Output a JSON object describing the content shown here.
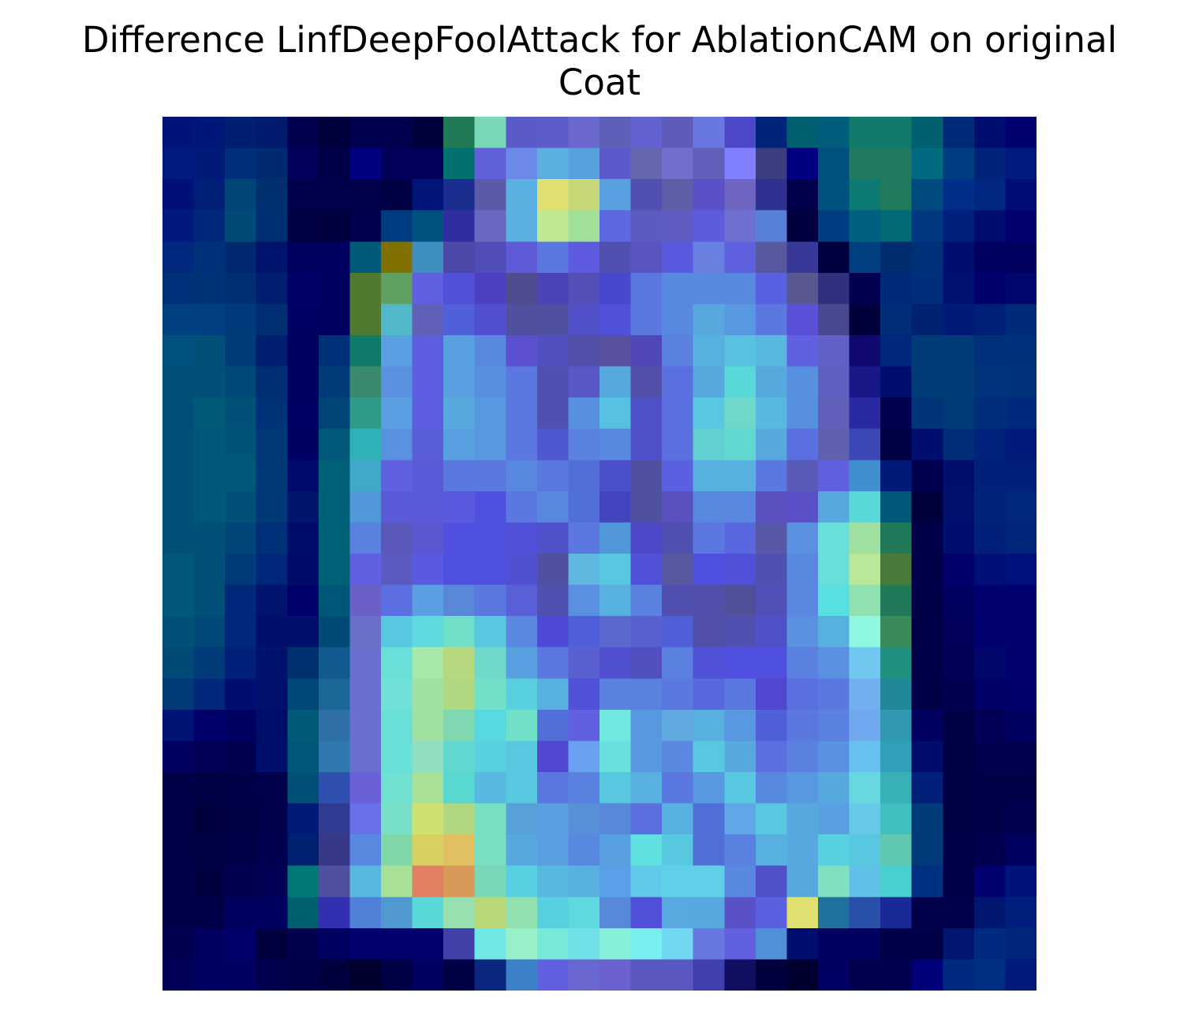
{
  "figure": {
    "title": "Difference LinfDeepFoolAttack for AblationCAM on original\nCoat"
  },
  "image": {
    "description_kind": "28x28 heatmap overlay (jet colormap) on a coat silhouette",
    "grid": 28,
    "colors": {
      "dark_navy": "#000050",
      "navy": "#001a80",
      "teal": "#006070",
      "blue_violet": "#5a5ad8",
      "sky": "#60b0e0",
      "cyan": "#60e0e0",
      "light_green": "#a0e0a0",
      "yellow": "#e0e070",
      "orange": "#e08060",
      "olive": "#807000"
    },
    "pixels": [
      [
        "#00137a",
        "#00177a",
        "#001f70",
        "#001a6e",
        "#000050",
        "#00003c",
        "#000050",
        "#000050",
        "#00003c",
        "#207a55",
        "#78d8b8",
        "#5a5ac8",
        "#5e5ccb",
        "#6a68cc",
        "#5e60b8",
        "#6262d0",
        "#5e5cb8",
        "#6878e0",
        "#4c48c8",
        "#00247a",
        "#006070",
        "#005e7c",
        "#107a6a",
        "#107a6a",
        "#006070",
        "#002a78",
        "#000e70",
        "#000070"
      ],
      [
        "#001a82",
        "#001a7a",
        "#002f78",
        "#002a70",
        "#00005a",
        "#000048",
        "#000080",
        "#00005a",
        "#00005a",
        "#007070",
        "#6060d8",
        "#6c88e8",
        "#5aaee0",
        "#56a0dc",
        "#5a5acc",
        "#6666b0",
        "#7070cc",
        "#6060b8",
        "#8080ff",
        "#3c3c80",
        "#000080",
        "#005080",
        "#207a62",
        "#207a62",
        "#006a80",
        "#003c80",
        "#00247a",
        "#001a82"
      ],
      [
        "#00107a",
        "#001f76",
        "#004478",
        "#003070",
        "#00004c",
        "#00004c",
        "#00004c",
        "#000044",
        "#00147a",
        "#1a2e90",
        "#5a5aa8",
        "#5ab0e0",
        "#e0e070",
        "#c8d878",
        "#58a0e0",
        "#5050b0",
        "#5e5ea8",
        "#5a50c8",
        "#6e66c0",
        "#303090",
        "#00004c",
        "#005280",
        "#0a7a72",
        "#207a5e",
        "#004a80",
        "#002e88",
        "#002880",
        "#000c78"
      ],
      [
        "#001880",
        "#00287a",
        "#004a78",
        "#002e72",
        "#000044",
        "#000040",
        "#000050",
        "#003c80",
        "#005080",
        "#2e2ea0",
        "#6868c0",
        "#5ab0e0",
        "#c0e890",
        "#a0e098",
        "#5e68e0",
        "#5c5cc0",
        "#5e5cc0",
        "#5c5cdc",
        "#7070d0",
        "#5880d8",
        "#000040",
        "#003c80",
        "#006080",
        "#006a76",
        "#003880",
        "#00207a",
        "#000c70",
        "#000070"
      ],
      [
        "#00287e",
        "#003078",
        "#00286e",
        "#00146e",
        "#000060",
        "#000060",
        "#005a78",
        "#807000",
        "#3e8ec0",
        "#4c48a8",
        "#504cb8",
        "#5e5ad8",
        "#5a78e0",
        "#5e5ae0",
        "#5050b0",
        "#5a54c0",
        "#5a5ae0",
        "#6880e0",
        "#5e60e0",
        "#5858a0",
        "#383898",
        "#000040",
        "#004080",
        "#002c70",
        "#003078",
        "#000e70",
        "#000060",
        "#000060"
      ],
      [
        "#003078",
        "#003278",
        "#002e74",
        "#001e70",
        "#000068",
        "#000060",
        "#507a30",
        "#60a060",
        "#5e60e0",
        "#5050d8",
        "#4c40c0",
        "#504c90",
        "#4a44b8",
        "#5450b8",
        "#4848cc",
        "#5a78e0",
        "#5888e0",
        "#5888e0",
        "#5888e0",
        "#5860e0",
        "#585890",
        "#303080",
        "#000050",
        "#002a78",
        "#002e7a",
        "#001070",
        "#00006c",
        "#00066e"
      ],
      [
        "#004080",
        "#004080",
        "#003a7a",
        "#002e72",
        "#000064",
        "#000060",
        "#507a30",
        "#50b8c8",
        "#6060b8",
        "#5060d8",
        "#5050d0",
        "#5050a0",
        "#5050a0",
        "#5050c8",
        "#5050d8",
        "#5a78e0",
        "#5888e0",
        "#58a8e0",
        "#5898e0",
        "#5a78e0",
        "#5a50d8",
        "#484890",
        "#00003c",
        "#002c78",
        "#002070",
        "#001a78",
        "#002078",
        "#002a7a"
      ],
      [
        "#005080",
        "#005078",
        "#003c78",
        "#001e70",
        "#000060",
        "#003078",
        "#107a6a",
        "#5aa0e0",
        "#5e5ee0",
        "#58a0e0",
        "#5888e0",
        "#5a50d0",
        "#5050c0",
        "#5050a8",
        "#5a50a0",
        "#5048b8",
        "#5a80e0",
        "#58b0e0",
        "#58c0e0",
        "#5ab8e0",
        "#6060e0",
        "#6060c8",
        "#100a70",
        "#00287a",
        "#003a78",
        "#003a78",
        "#00307a",
        "#00307a"
      ],
      [
        "#005078",
        "#005078",
        "#004878",
        "#002e74",
        "#000060",
        "#003a78",
        "#3a8a70",
        "#5a90e0",
        "#5e5ee0",
        "#58a0e0",
        "#5890e0",
        "#5a78e0",
        "#5050b0",
        "#5a58c8",
        "#58a8e0",
        "#5050a8",
        "#5a70e0",
        "#58a8e0",
        "#58d8d8",
        "#58a8e0",
        "#5890e0",
        "#6060c0",
        "#181888",
        "#000e70",
        "#003c7a",
        "#003c78",
        "#00347a",
        "#00327c"
      ],
      [
        "#005078",
        "#005a78",
        "#005078",
        "#003278",
        "#000064",
        "#004478",
        "#2e9a88",
        "#5aa0e0",
        "#5e5ee0",
        "#58a8e0",
        "#5898e0",
        "#5a78e0",
        "#5050b0",
        "#5890e0",
        "#58c0e0",
        "#5050c8",
        "#5a70e0",
        "#58c8e0",
        "#70d8c8",
        "#58b8e0",
        "#5890e0",
        "#6060b8",
        "#2828a0",
        "#000050",
        "#003678",
        "#003a78",
        "#002e7a",
        "#002a7c"
      ],
      [
        "#005078",
        "#005878",
        "#005478",
        "#003878",
        "#000062",
        "#00587a",
        "#30b0b8",
        "#5a90e0",
        "#5a5ed8",
        "#58a0e0",
        "#5898e0",
        "#5a78e0",
        "#5058d0",
        "#5a80e0",
        "#5888e0",
        "#5050c8",
        "#5a70e0",
        "#60d0d0",
        "#60d8d0",
        "#58a8e0",
        "#5a70e0",
        "#6060b0",
        "#3c48b8",
        "#000044",
        "#000e70",
        "#002c78",
        "#00227a",
        "#001a7c"
      ],
      [
        "#005078",
        "#005878",
        "#005878",
        "#003878",
        "#000a6c",
        "#006078",
        "#40a8c8",
        "#6060e0",
        "#5a5ad8",
        "#5a78e0",
        "#5a78e0",
        "#5888e0",
        "#5878e0",
        "#5070d8",
        "#4c50c8",
        "#5050a0",
        "#5a60e0",
        "#58b0e0",
        "#58b0e0",
        "#5a78e0",
        "#5a5ab8",
        "#6060e0",
        "#4090d0",
        "#001a7a",
        "#000050",
        "#000e6c",
        "#00207a",
        "#00207c"
      ],
      [
        "#005078",
        "#005878",
        "#005078",
        "#003878",
        "#00166c",
        "#006078",
        "#5098d8",
        "#5a5ad8",
        "#5a5ad8",
        "#5a5ae0",
        "#5050e0",
        "#5a78e0",
        "#5888e0",
        "#5070d8",
        "#4444c0",
        "#5050a0",
        "#5a50c0",
        "#5888e0",
        "#5a88e0",
        "#5a50c0",
        "#5a50c8",
        "#58a8e0",
        "#58d8d8",
        "#005878",
        "#00003c",
        "#00106c",
        "#002478",
        "#00287c"
      ],
      [
        "#005078",
        "#005078",
        "#004478",
        "#003078",
        "#000c6a",
        "#006078",
        "#5a80e0",
        "#5a58b8",
        "#5a58d0",
        "#5050e0",
        "#5050e0",
        "#5050d8",
        "#5050c8",
        "#5a78e0",
        "#5098d8",
        "#4c48c8",
        "#5050b0",
        "#5a78e0",
        "#5a68e0",
        "#5858a8",
        "#5a90e0",
        "#68e0d8",
        "#a0e0a0",
        "#207a5a",
        "#000048",
        "#000e70",
        "#00207a",
        "#00267a"
      ],
      [
        "#005878",
        "#005078",
        "#003a78",
        "#00287a",
        "#000a68",
        "#006078",
        "#6060e0",
        "#5a5ac0",
        "#5a5ae0",
        "#5050e0",
        "#5050e0",
        "#5050d0",
        "#5050a0",
        "#60b8e0",
        "#58c8e0",
        "#5050d8",
        "#5858a0",
        "#5050e0",
        "#5050d8",
        "#5050b0",
        "#5888e0",
        "#68e0d8",
        "#b8e898",
        "#4a7a3a",
        "#000048",
        "#00006c",
        "#000e78",
        "#00107c"
      ],
      [
        "#005878",
        "#005078",
        "#00287a",
        "#00146e",
        "#00006a",
        "#005878",
        "#6a60c8",
        "#5a70e0",
        "#5aa0e0",
        "#5a88d8",
        "#5a78e0",
        "#5a60d8",
        "#5050b0",
        "#5a90e0",
        "#58b0e0",
        "#5a80e0",
        "#5050b0",
        "#5050a8",
        "#505098",
        "#5050b8",
        "#5a88e0",
        "#58e0e0",
        "#90e0b0",
        "#207a5a",
        "#000048",
        "#000060",
        "#000070",
        "#000070"
      ],
      [
        "#005078",
        "#004878",
        "#00287a",
        "#000e6c",
        "#00106a",
        "#004a78",
        "#6a70c8",
        "#58c8e0",
        "#60d8e0",
        "#70e0c8",
        "#58c8e0",
        "#5a88e0",
        "#5048d8",
        "#5060d8",
        "#5a68d0",
        "#5a60d0",
        "#5060d8",
        "#5050a8",
        "#5050b0",
        "#5050c8",
        "#5a90e0",
        "#58b0e0",
        "#90f8e0",
        "#3a8a5a",
        "#000048",
        "#000058",
        "#000070",
        "#000070"
      ],
      [
        "#004a78",
        "#003a78",
        "#00207a",
        "#00126c",
        "#003070",
        "#105a90",
        "#6a70d0",
        "#68e0d8",
        "#a8e8a8",
        "#b8d880",
        "#70d8c8",
        "#58a0e0",
        "#5a78e0",
        "#5a60d0",
        "#5050d0",
        "#5050c0",
        "#5a80e0",
        "#5050d8",
        "#5050e0",
        "#5050e0",
        "#5a80e0",
        "#5a90e0",
        "#70c8f0",
        "#209080",
        "#000048",
        "#000056",
        "#00066c",
        "#000070"
      ],
      [
        "#003a78",
        "#00287a",
        "#000e72",
        "#00106c",
        "#004878",
        "#1a6898",
        "#6a70d0",
        "#70e0d8",
        "#a0e0a0",
        "#b0d880",
        "#70e0c8",
        "#58d0e0",
        "#58b0e0",
        "#5050d8",
        "#5a80e0",
        "#5a80e0",
        "#5a78e0",
        "#5a68e0",
        "#5a78e0",
        "#5048d0",
        "#5a70e0",
        "#5a78e0",
        "#70b0f0",
        "#208898",
        "#000048",
        "#000050",
        "#000066",
        "#00006c"
      ],
      [
        "#001476",
        "#00006a",
        "#000060",
        "#000e6a",
        "#005a78",
        "#3070a8",
        "#6a70d0",
        "#68e0d8",
        "#a0e0a0",
        "#80d8b0",
        "#58d8e0",
        "#70e0c8",
        "#5070d8",
        "#6060e0",
        "#70e8e0",
        "#5898e0",
        "#60a8e0",
        "#58b0e0",
        "#5898e0",
        "#5060d8",
        "#5a78e0",
        "#5a80e0",
        "#70a8f0",
        "#3098b0",
        "#000060",
        "#000044",
        "#000054",
        "#000060"
      ],
      [
        "#000062",
        "#000056",
        "#000050",
        "#000e6c",
        "#005878",
        "#3078b0",
        "#6a70d0",
        "#68e0d8",
        "#90e0c0",
        "#60d8d0",
        "#58d0e0",
        "#58c8e0",
        "#5048d0",
        "#6aa0f0",
        "#68e0e0",
        "#5898e0",
        "#5a88e0",
        "#58c8e0",
        "#58a8e0",
        "#5a70e0",
        "#5a80e0",
        "#5a90e0",
        "#68c0f0",
        "#30a0b8",
        "#000c6c",
        "#000044",
        "#000050",
        "#000050"
      ],
      [
        "#000048",
        "#000044",
        "#000048",
        "#00004c",
        "#005078",
        "#3050b0",
        "#6a60d8",
        "#70e0d0",
        "#a8e098",
        "#58d8d0",
        "#58b8e0",
        "#58c8e0",
        "#5a78e0",
        "#5a80e0",
        "#58c8e0",
        "#58b0e0",
        "#5a78e0",
        "#5898e0",
        "#58c8e0",
        "#5888e0",
        "#5898e0",
        "#58a8e0",
        "#68d8e0",
        "#38b0b8",
        "#00207a",
        "#000044",
        "#000048",
        "#000048"
      ],
      [
        "#000048",
        "#00003e",
        "#000044",
        "#00004c",
        "#001a7a",
        "#303c90",
        "#6a70e8",
        "#78e0c8",
        "#d0e070",
        "#b0d880",
        "#78e0c0",
        "#58a0d8",
        "#58a0e0",
        "#5890d8",
        "#5888d8",
        "#5a70e0",
        "#58b0e0",
        "#5070d8",
        "#60a8e8",
        "#58c8e0",
        "#58a8e0",
        "#58a0e0",
        "#68c8e8",
        "#40c0c0",
        "#003a78",
        "#000044",
        "#000048",
        "#000050"
      ],
      [
        "#000048",
        "#000044",
        "#000048",
        "#000050",
        "#002070",
        "#383888",
        "#5888e0",
        "#80d8a8",
        "#d8d060",
        "#e0c060",
        "#78e0c0",
        "#58a8e0",
        "#58a0e0",
        "#5888e0",
        "#58a0e0",
        "#60e0e0",
        "#58c8e0",
        "#5070d8",
        "#5a80e0",
        "#58b0e0",
        "#58a8e0",
        "#58d0e0",
        "#58c8e0",
        "#60c8b0",
        "#003a78",
        "#000048",
        "#000050",
        "#000060"
      ],
      [
        "#000048",
        "#000040",
        "#000050",
        "#000054",
        "#007878",
        "#5050a0",
        "#58b8e0",
        "#a8e098",
        "#e08060",
        "#d89858",
        "#78d8b8",
        "#58d0e0",
        "#58b8e0",
        "#58b0e0",
        "#5aa0e8",
        "#60c8e8",
        "#60d0e8",
        "#60d0e8",
        "#5888e0",
        "#5050c8",
        "#58a8e0",
        "#80e0c0",
        "#60c0e8",
        "#48d0d0",
        "#003080",
        "#000048",
        "#000070",
        "#00137c"
      ],
      [
        "#000048",
        "#000048",
        "#000060",
        "#000060",
        "#006070",
        "#3030b0",
        "#5080d8",
        "#5098d0",
        "#58d8d8",
        "#98e0b0",
        "#b8d878",
        "#90e0b0",
        "#58d0e0",
        "#60d8e0",
        "#5888d8",
        "#5050d8",
        "#5aa8e0",
        "#58a8e0",
        "#5a50c8",
        "#5a60e0",
        "#e0e070",
        "#2070a0",
        "#2850a8",
        "#1a2898",
        "#00004c",
        "#00004c",
        "#001770",
        "#001e7c"
      ],
      [
        "#000050",
        "#000060",
        "#00006a",
        "#00003e",
        "#00004e",
        "#000060",
        "#000070",
        "#000070",
        "#000070",
        "#4040a8",
        "#70e8e8",
        "#98f0c8",
        "#78e8d8",
        "#70e0e8",
        "#88f0d8",
        "#78eef0",
        "#70d8f0",
        "#6878e0",
        "#6060e0",
        "#5090d8",
        "#000e70",
        "#000060",
        "#000060",
        "#000048",
        "#000048",
        "#001670",
        "#002a80",
        "#00267c"
      ],
      [
        "#000056",
        "#000062",
        "#000060",
        "#000050",
        "#000048",
        "#00003e",
        "#000030",
        "#000044",
        "#000060",
        "#000044",
        "#0a2880",
        "#3c80c8",
        "#6060e0",
        "#6a68d0",
        "#6a60d0",
        "#5a58c0",
        "#5a58c0",
        "#4040b0",
        "#100e60",
        "#000040",
        "#000030",
        "#000064",
        "#000050",
        "#000052",
        "#000078",
        "#002a80",
        "#002e80",
        "#001a7c"
      ]
    ]
  }
}
